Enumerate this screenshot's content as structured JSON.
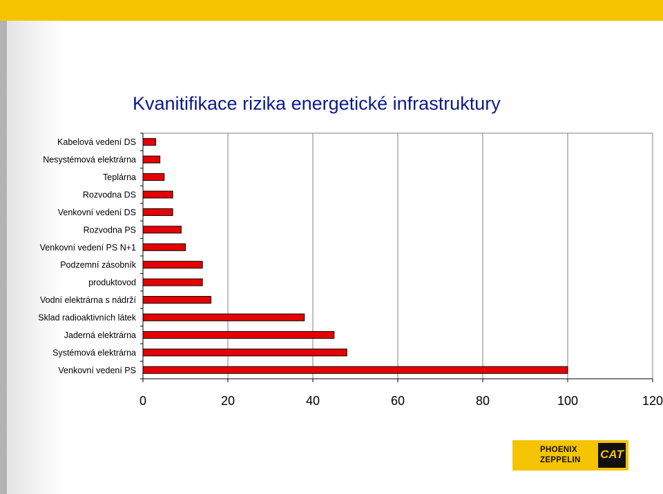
{
  "colors": {
    "bar_fill": "#e60000",
    "bar_stroke": "#000000",
    "title_color": "#0a1a8c",
    "top_bar": "#f5c400",
    "grid": "#808080"
  },
  "chart_data": {
    "type": "bar",
    "orientation": "horizontal",
    "title": "Kvanitifikace rizika energetické infrastruktury",
    "xlabel": "",
    "ylabel": "",
    "xlim": [
      0,
      120
    ],
    "x_ticks": [
      0,
      20,
      40,
      60,
      80,
      100,
      120
    ],
    "x_tick_labels": [
      "0",
      "20",
      "40",
      "60",
      "80",
      "100",
      "120"
    ],
    "grid": "vertical",
    "legend": "none",
    "categories": [
      "Kabelová vedení DS",
      "Nesystémová elektrárna",
      "Teplárna",
      "Rozvodna DS",
      "Venkovní vedení DS",
      "Rozvodna PS",
      "Venkovní vedení PS N+1",
      "Podzemní zásobník",
      "produktovod",
      "Vodní elektrárna s nádrží",
      "Sklad radioaktivních látek",
      "Jaderná elektrárna",
      "Systémová elektrárna",
      "Venkovní vedení PS"
    ],
    "values": [
      3,
      4,
      5,
      7,
      7,
      9,
      10,
      14,
      14,
      16,
      38,
      45,
      48,
      100
    ]
  },
  "logo": {
    "line1": "PHOENIX",
    "line2": "ZEPPELIN",
    "mark": "CAT"
  }
}
